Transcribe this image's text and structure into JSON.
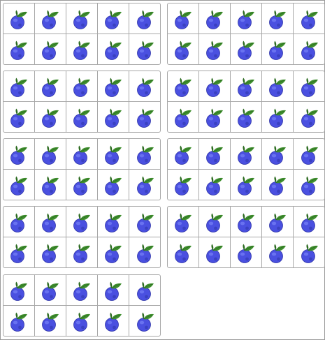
{
  "scene": {
    "object": "blueberry-icon",
    "frame_count": 9,
    "rows_per_frame": 2,
    "columns_per_frame": 5,
    "total_blueberries": 90
  },
  "colors": {
    "background": "#ffffff",
    "grid_line": "#a8a8a8",
    "berry_fill": "#4a50e0",
    "berry_light": "#6f78f2",
    "berry_dark": "#2e34a8",
    "leaf_fill": "#3f8f2e",
    "leaf_dark": "#2c6b20"
  },
  "frames": [
    {
      "name": "ten-frame-1",
      "filled": 10
    },
    {
      "name": "ten-frame-2",
      "filled": 10
    },
    {
      "name": "ten-frame-3",
      "filled": 10
    },
    {
      "name": "ten-frame-4",
      "filled": 10
    },
    {
      "name": "ten-frame-5",
      "filled": 10
    },
    {
      "name": "ten-frame-6",
      "filled": 10
    },
    {
      "name": "ten-frame-7",
      "filled": 10
    },
    {
      "name": "ten-frame-8",
      "filled": 10
    },
    {
      "name": "ten-frame-9",
      "filled": 10
    }
  ]
}
